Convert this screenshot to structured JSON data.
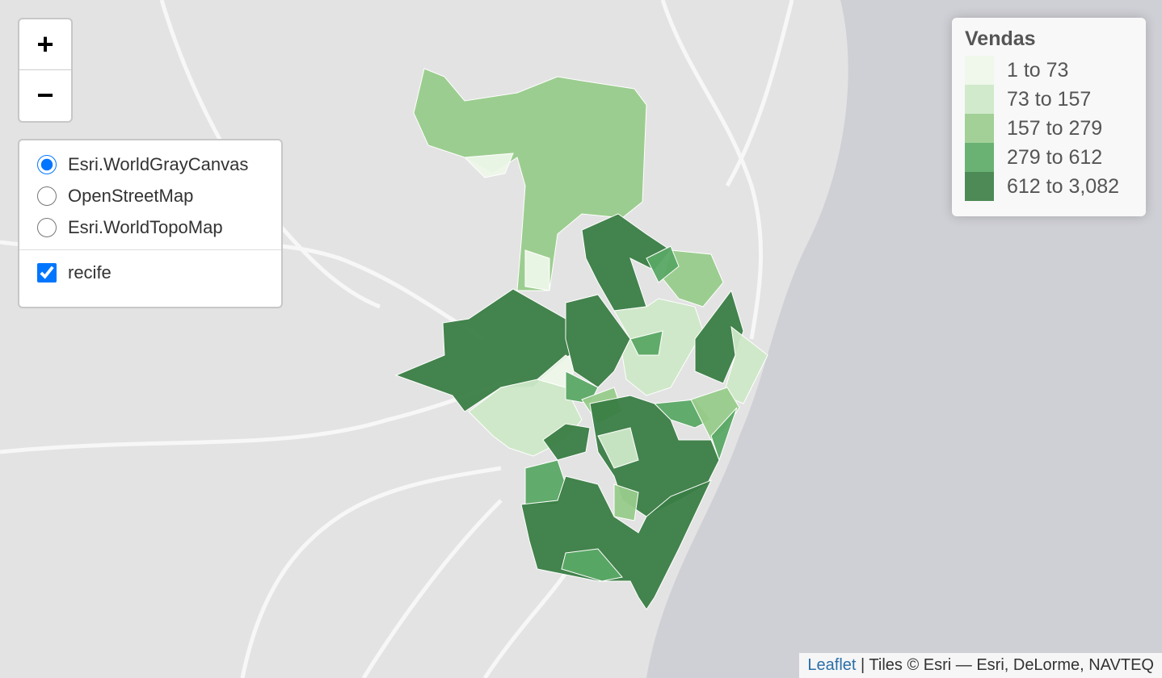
{
  "zoom": {
    "in": "+",
    "out": "−"
  },
  "layers": {
    "base": [
      "Esri.WorldGrayCanvas",
      "OpenStreetMap",
      "Esri.WorldTopoMap"
    ],
    "overlays": [
      "recife"
    ]
  },
  "legend": {
    "title": "Vendas",
    "items": [
      {
        "label": "1 to 73",
        "color": "#edf7e9"
      },
      {
        "label": "73 to 157",
        "color": "#cde8c7"
      },
      {
        "label": "157 to 279",
        "color": "#98cb8b"
      },
      {
        "label": "279 to 612",
        "color": "#5aa865"
      },
      {
        "label": "612 to 3,082",
        "color": "#3a7d44"
      }
    ]
  },
  "attribution": {
    "link": "Leaflet",
    "text": "| Tiles © Esri — Esri, DeLorme, NAVTEQ"
  }
}
